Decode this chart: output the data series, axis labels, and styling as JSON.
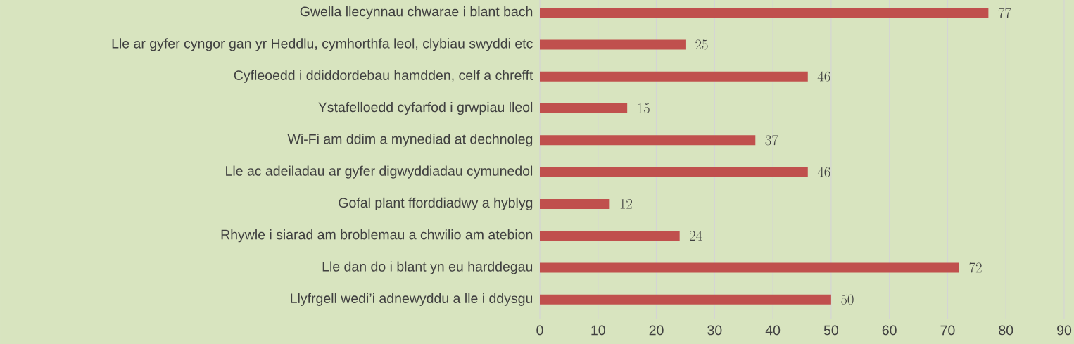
{
  "chart_data": {
    "type": "bar",
    "orientation": "horizontal",
    "categories": [
      "Gwella llecynnau chwarae i blant bach",
      "Lle ar gyfer cyngor gan yr Heddlu, cymhorthfa leol, clybiau swyddi etc",
      "Cyfleoedd i ddiddordebau hamdden, celf a chrefft",
      "Ystafelloedd cyfarfod i grwpiau lleol",
      "Wi-Fi am ddim a mynediad at dechnoleg",
      "Lle ac adeiladau ar gyfer digwyddiadau cymunedol",
      "Gofal plant fforddiadwy a hyblyg",
      "Rhywle i siarad am broblemau a chwilio am atebion",
      "Lle dan do i blant yn eu harddegau",
      "Llyfrgell wedi’i adnewyddu a lle i ddysgu"
    ],
    "values": [
      77,
      25,
      46,
      15,
      37,
      46,
      12,
      24,
      72,
      50
    ],
    "color": "#c0504d",
    "xlim": [
      0,
      90
    ],
    "xticks": [
      0,
      10,
      20,
      30,
      40,
      50,
      60,
      70,
      80,
      90
    ],
    "grid": "x",
    "data_labels": true
  }
}
